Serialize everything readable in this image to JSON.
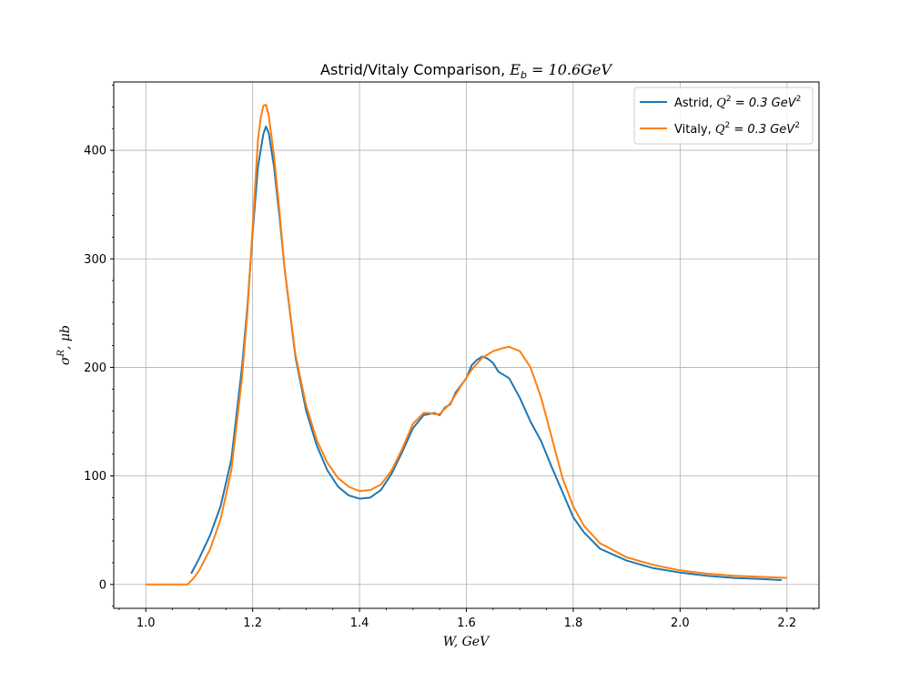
{
  "chart_data": {
    "type": "line",
    "title": "Astrid/Vitaly Comparison, ",
    "title_math": "E",
    "title_math_sub": "b",
    "title_math_rest": " = 10.6GeV",
    "xlabel": "W, GeV",
    "ylabel": "σ",
    "ylabel_sup": "R",
    "ylabel_rest": ", μb",
    "xlim": [
      0.94,
      2.26
    ],
    "ylim": [
      -22,
      463
    ],
    "xticks": [
      1.0,
      1.2,
      1.4,
      1.6,
      1.8,
      2.0,
      2.2
    ],
    "xtick_labels": [
      "1.0",
      "1.2",
      "1.4",
      "1.6",
      "1.8",
      "2.0",
      "2.2"
    ],
    "yticks": [
      0,
      100,
      200,
      300,
      400
    ],
    "ytick_labels": [
      "0",
      "100",
      "200",
      "300",
      "400"
    ],
    "grid": true,
    "legend_position": "top-right",
    "series": [
      {
        "name": "Astrid, ",
        "legend_math": "Q",
        "legend_sup": "2",
        "legend_rest": " = 0.3 GeV",
        "legend_sup2": "2",
        "color": "#1f77b4",
        "points": [
          [
            1.085,
            10
          ],
          [
            1.1,
            24
          ],
          [
            1.12,
            45
          ],
          [
            1.14,
            72
          ],
          [
            1.16,
            115
          ],
          [
            1.18,
            200
          ],
          [
            1.19,
            255
          ],
          [
            1.2,
            325
          ],
          [
            1.21,
            385
          ],
          [
            1.22,
            415
          ],
          [
            1.225,
            422
          ],
          [
            1.23,
            416
          ],
          [
            1.24,
            385
          ],
          [
            1.25,
            340
          ],
          [
            1.26,
            290
          ],
          [
            1.28,
            210
          ],
          [
            1.3,
            160
          ],
          [
            1.32,
            128
          ],
          [
            1.34,
            105
          ],
          [
            1.36,
            90
          ],
          [
            1.38,
            82
          ],
          [
            1.4,
            79
          ],
          [
            1.42,
            80
          ],
          [
            1.44,
            87
          ],
          [
            1.46,
            102
          ],
          [
            1.48,
            122
          ],
          [
            1.5,
            144
          ],
          [
            1.52,
            156
          ],
          [
            1.54,
            158
          ],
          [
            1.55,
            156
          ],
          [
            1.56,
            163
          ],
          [
            1.57,
            166
          ],
          [
            1.58,
            177
          ],
          [
            1.6,
            190
          ],
          [
            1.61,
            202
          ],
          [
            1.62,
            207
          ],
          [
            1.63,
            210
          ],
          [
            1.64,
            208
          ],
          [
            1.65,
            204
          ],
          [
            1.66,
            196
          ],
          [
            1.68,
            190
          ],
          [
            1.7,
            172
          ],
          [
            1.72,
            150
          ],
          [
            1.74,
            132
          ],
          [
            1.76,
            108
          ],
          [
            1.78,
            85
          ],
          [
            1.8,
            62
          ],
          [
            1.82,
            48
          ],
          [
            1.85,
            33
          ],
          [
            1.9,
            22
          ],
          [
            1.95,
            15
          ],
          [
            2.0,
            11
          ],
          [
            2.05,
            8
          ],
          [
            2.1,
            6
          ],
          [
            2.15,
            5
          ],
          [
            2.19,
            4
          ]
        ]
      },
      {
        "name": "Vitaly, ",
        "legend_math": "Q",
        "legend_sup": "2",
        "legend_rest": " = 0.3 GeV",
        "legend_sup2": "2",
        "color": "#ff7f0e",
        "points": [
          [
            1.0,
            0
          ],
          [
            1.02,
            0
          ],
          [
            1.04,
            0
          ],
          [
            1.06,
            0
          ],
          [
            1.078,
            0
          ],
          [
            1.09,
            6
          ],
          [
            1.1,
            13
          ],
          [
            1.12,
            32
          ],
          [
            1.14,
            60
          ],
          [
            1.16,
            105
          ],
          [
            1.18,
            190
          ],
          [
            1.19,
            250
          ],
          [
            1.2,
            330
          ],
          [
            1.21,
            410
          ],
          [
            1.215,
            430
          ],
          [
            1.22,
            441
          ],
          [
            1.225,
            442
          ],
          [
            1.23,
            432
          ],
          [
            1.24,
            395
          ],
          [
            1.25,
            345
          ],
          [
            1.26,
            290
          ],
          [
            1.28,
            212
          ],
          [
            1.3,
            165
          ],
          [
            1.32,
            133
          ],
          [
            1.34,
            112
          ],
          [
            1.36,
            98
          ],
          [
            1.38,
            90
          ],
          [
            1.4,
            86
          ],
          [
            1.42,
            87
          ],
          [
            1.44,
            92
          ],
          [
            1.46,
            105
          ],
          [
            1.48,
            125
          ],
          [
            1.5,
            148
          ],
          [
            1.52,
            158
          ],
          [
            1.53,
            158
          ],
          [
            1.54,
            157
          ],
          [
            1.55,
            157
          ],
          [
            1.57,
            167
          ],
          [
            1.59,
            183
          ],
          [
            1.61,
            198
          ],
          [
            1.63,
            209
          ],
          [
            1.65,
            215
          ],
          [
            1.67,
            218
          ],
          [
            1.68,
            219
          ],
          [
            1.7,
            215
          ],
          [
            1.72,
            200
          ],
          [
            1.74,
            172
          ],
          [
            1.76,
            135
          ],
          [
            1.78,
            98
          ],
          [
            1.8,
            72
          ],
          [
            1.82,
            54
          ],
          [
            1.85,
            38
          ],
          [
            1.9,
            25
          ],
          [
            1.95,
            18
          ],
          [
            2.0,
            13
          ],
          [
            2.05,
            10
          ],
          [
            2.1,
            8
          ],
          [
            2.15,
            7
          ],
          [
            2.2,
            6
          ]
        ]
      }
    ]
  }
}
